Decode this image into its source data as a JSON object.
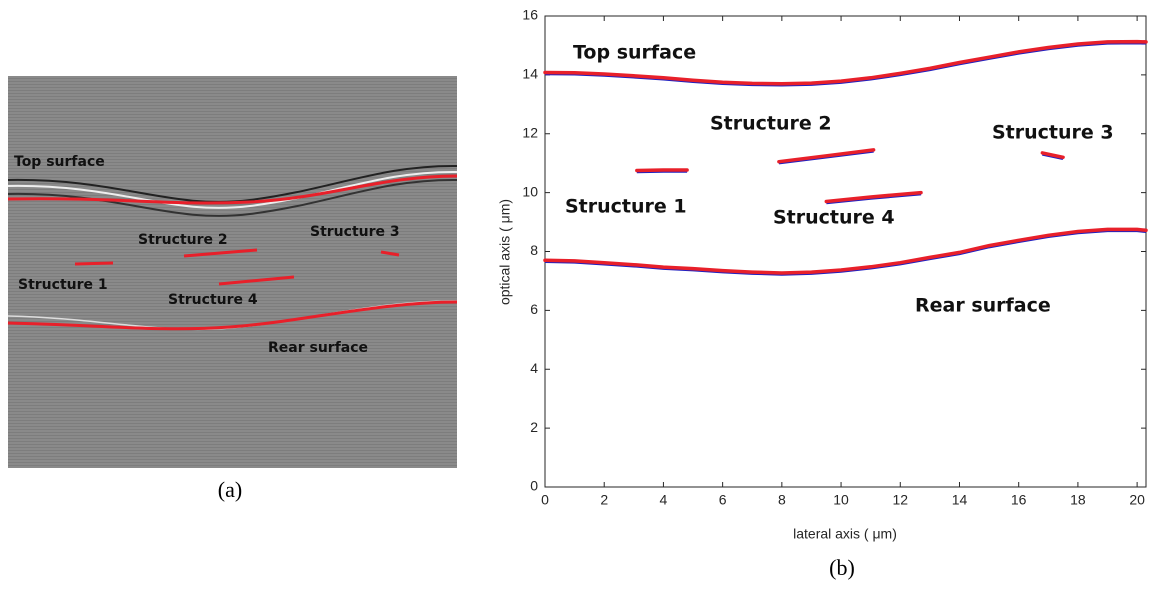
{
  "image_panel": {
    "caption": "(a)",
    "labels": [
      "Top surface",
      "Structure 2",
      "Structure 3",
      "Structure 1",
      "Structure 4",
      "Rear surface"
    ]
  },
  "chart_data": {
    "type": "line",
    "caption": "(b)",
    "xlabel": "lateral axis ( μm)",
    "ylabel": "optical axis ( μm)",
    "xlim": [
      0,
      20.3
    ],
    "ylim": [
      0,
      16
    ],
    "xticks": [
      0,
      2,
      4,
      6,
      8,
      10,
      12,
      14,
      16,
      18,
      20
    ],
    "yticks": [
      0,
      2,
      4,
      6,
      8,
      10,
      12,
      14,
      16
    ],
    "series": [
      {
        "name": "Top surface",
        "color": "#e8202a",
        "x": [
          0,
          1,
          2,
          3,
          4,
          5,
          6,
          7,
          8,
          9,
          10,
          11,
          12,
          13,
          14,
          15,
          16,
          17,
          18,
          19,
          20,
          20.3
        ],
        "values": [
          14.08,
          14.07,
          14.03,
          13.97,
          13.9,
          13.82,
          13.75,
          13.71,
          13.7,
          13.72,
          13.79,
          13.9,
          14.05,
          14.22,
          14.42,
          14.6,
          14.78,
          14.93,
          15.05,
          15.12,
          15.13,
          15.12
        ]
      },
      {
        "name": "Structure 2",
        "color": "#e8202a",
        "x": [
          7.9,
          9.5,
          11.1
        ],
        "values": [
          11.05,
          11.25,
          11.45
        ]
      },
      {
        "name": "Structure 3",
        "color": "#e8202a",
        "x": [
          16.8,
          17.5
        ],
        "values": [
          11.35,
          11.2
        ]
      },
      {
        "name": "Structure 1",
        "color": "#e8202a",
        "x": [
          3.1,
          4.0,
          4.8
        ],
        "values": [
          10.75,
          10.77,
          10.77
        ]
      },
      {
        "name": "Structure 4",
        "color": "#e8202a",
        "x": [
          9.5,
          11.0,
          12.7
        ],
        "values": [
          9.7,
          9.85,
          10.0
        ]
      },
      {
        "name": "Rear surface",
        "color": "#e8202a",
        "x": [
          0,
          1,
          2,
          3,
          4,
          5,
          6,
          7,
          8,
          9,
          10,
          11,
          12,
          13,
          14,
          15,
          16,
          17,
          18,
          19,
          20,
          20.3
        ],
        "values": [
          7.7,
          7.68,
          7.62,
          7.55,
          7.47,
          7.42,
          7.35,
          7.3,
          7.27,
          7.3,
          7.37,
          7.48,
          7.62,
          7.8,
          7.97,
          8.2,
          8.38,
          8.55,
          8.68,
          8.75,
          8.75,
          8.72
        ]
      }
    ]
  }
}
